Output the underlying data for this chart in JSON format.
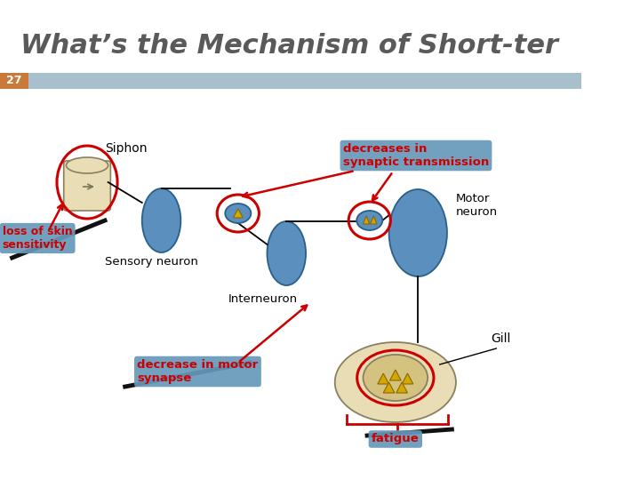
{
  "title": "What’s the Mechanism of Short-ter",
  "title_color": "#5a5a5a",
  "title_fontsize": 22,
  "bg_color": "#ffffff",
  "slide_number": "27",
  "slide_number_bg": "#c97a3a",
  "slide_number_color": "#ffffff",
  "header_bar_color": "#a8bfcc",
  "labels": {
    "siphon": "Siphon",
    "sensory_neuron": "Sensory neuron",
    "motor_neuron": "Motor\nneuron",
    "interneuron": "Interneuron",
    "gill": "Gill",
    "decreases": "decreases in\nsynaptic transmission",
    "loss_of_skin": "loss of skin\nsensitivity",
    "decrease_motor": "decrease in motor\nsynapse",
    "fatigue": "fatigue"
  },
  "label_colors": {
    "siphon": "#000000",
    "sensory_neuron": "#000000",
    "motor_neuron": "#000000",
    "interneuron": "#000000",
    "gill": "#000000",
    "decreases": "#cc0000",
    "loss_of_skin": "#cc0000",
    "decrease_motor": "#cc0000",
    "fatigue": "#cc0000"
  },
  "label_bg": {
    "decreases": "#6699bb",
    "loss_of_skin": "#6699bb",
    "decrease_motor": "#6699bb",
    "fatigue": "#6699bb"
  },
  "neuron_color": "#5b8fbe",
  "neuron_edge": "#2a5f8a",
  "siphon_color": "#e8ddb5",
  "siphon_edge": "#8a8060",
  "gill_color": "#e8ddb5",
  "gill_edge": "#8a8060",
  "triangle_color": "#d4a800",
  "triangle_edge": "#8a6800",
  "circle_color": "#cc0000",
  "line_color": "#000000",
  "arrow_color": "#cc0000",
  "cross_color": "#111111"
}
